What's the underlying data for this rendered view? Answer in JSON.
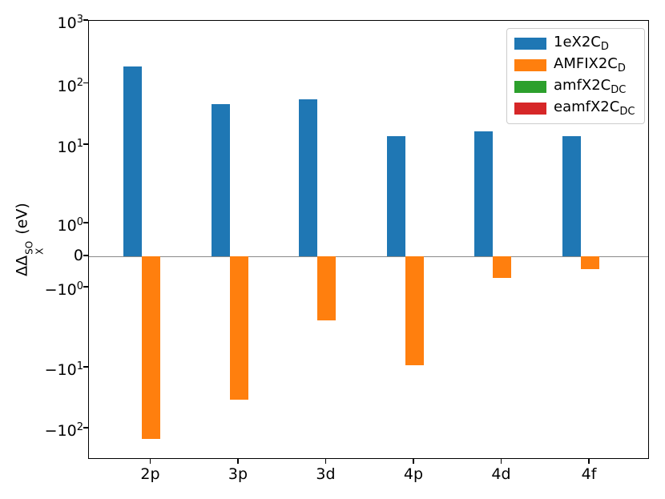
{
  "figure": {
    "background": "#ffffff"
  },
  "chart_data": {
    "type": "bar",
    "title": "",
    "xlabel": "",
    "ylabel": {
      "prefix": "ΔΔ",
      "sup": "SO",
      "sub": "X",
      "suffix": " (eV)"
    },
    "yscale": "symlog",
    "ylim": [
      -316,
      1000
    ],
    "grid": false,
    "zero_line_color": "#8a8a8a",
    "categories": [
      "2p",
      "3p",
      "3d",
      "4p",
      "4d",
      "4f"
    ],
    "series": [
      {
        "name": "1eX2C",
        "name_sub": "D",
        "color": "#1f77b4",
        "values": [
          190,
          46,
          56,
          14,
          16.5,
          14
        ]
      },
      {
        "name": "AMFIX2C",
        "name_sub": "D",
        "color": "#ff7f0e",
        "values": [
          -145,
          -34,
          -2.6,
          -9.4,
          -0.7,
          -0.4
        ]
      },
      {
        "name": "amfX2C",
        "name_sub": "DC",
        "color": "#2ca02c",
        "values": [
          0,
          0,
          0,
          0,
          0,
          0
        ]
      },
      {
        "name": "eamfX2C",
        "name_sub": "DC",
        "color": "#d62728",
        "values": [
          0,
          0,
          0,
          0,
          0,
          0
        ]
      }
    ],
    "yticks": [
      {
        "v": 1000,
        "sign": "",
        "exp": "3"
      },
      {
        "v": 100,
        "sign": "",
        "exp": "2"
      },
      {
        "v": 10,
        "sign": "",
        "exp": "1"
      },
      {
        "v": 1,
        "sign": "",
        "exp": "0"
      },
      {
        "v": 0,
        "plain": "0"
      },
      {
        "v": -1,
        "sign": "−",
        "exp": "0"
      },
      {
        "v": -10,
        "sign": "−",
        "exp": "1"
      },
      {
        "v": -100,
        "sign": "−",
        "exp": "2"
      }
    ],
    "legend": {
      "position": "upper right"
    }
  }
}
